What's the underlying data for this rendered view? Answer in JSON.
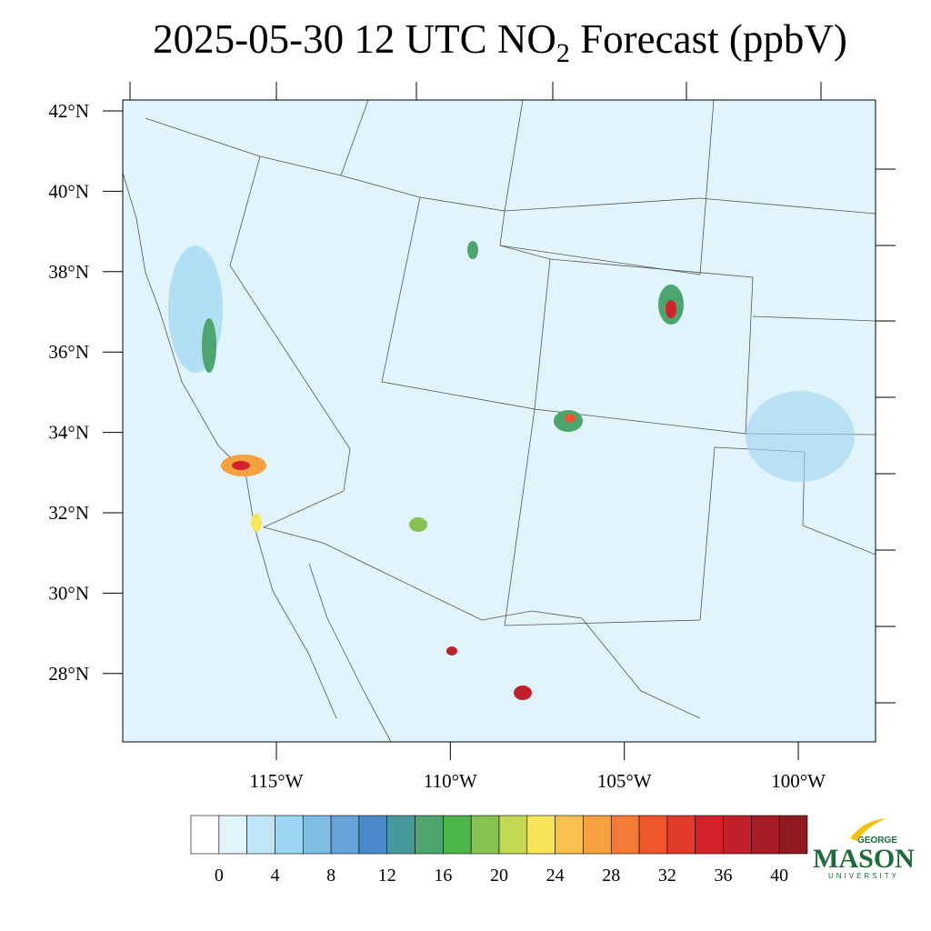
{
  "title": {
    "main": "2025-05-30 12 UTC NO",
    "subscript": "2",
    "rest": " Forecast (ppbV)"
  },
  "map": {
    "lat_ticks": [
      {
        "value": 42,
        "label": "42°N"
      },
      {
        "value": 40,
        "label": "40°N"
      },
      {
        "value": 38,
        "label": "38°N"
      },
      {
        "value": 36,
        "label": "36°N"
      },
      {
        "value": 34,
        "label": "34°N"
      },
      {
        "value": 32,
        "label": "32°N"
      },
      {
        "value": 30,
        "label": "30°N"
      },
      {
        "value": 28,
        "label": "28°N"
      }
    ],
    "lon_ticks": [
      {
        "value": -115,
        "label": "115°W"
      },
      {
        "value": -110,
        "label": "110°W"
      },
      {
        "value": -105,
        "label": "105°W"
      },
      {
        "value": -100,
        "label": "100°W"
      }
    ]
  },
  "colorbar": {
    "levels": [
      0,
      2,
      4,
      6,
      8,
      10,
      12,
      14,
      16,
      18,
      20,
      22,
      24,
      26,
      28,
      30,
      32,
      34,
      36,
      38,
      40
    ],
    "ticks": [
      0,
      4,
      8,
      12,
      16,
      20,
      24,
      28,
      32,
      36,
      40
    ],
    "colors": [
      "#ffffff",
      "#e1f3fb",
      "#bfe5f6",
      "#9dd6f2",
      "#7fbde4",
      "#66a3d9",
      "#4a8acb",
      "#46999d",
      "#4ca56e",
      "#4cb54a",
      "#86c44f",
      "#c2d855",
      "#f7e65a",
      "#f8c14d",
      "#f7a040",
      "#f57a36",
      "#ef562d",
      "#e03a2a",
      "#d42028",
      "#c0202a",
      "#a81d25",
      "#8f1a20"
    ]
  },
  "logo": {
    "top": "GEORGE",
    "main": "MASON",
    "bottom": "UNIVERSITY"
  }
}
